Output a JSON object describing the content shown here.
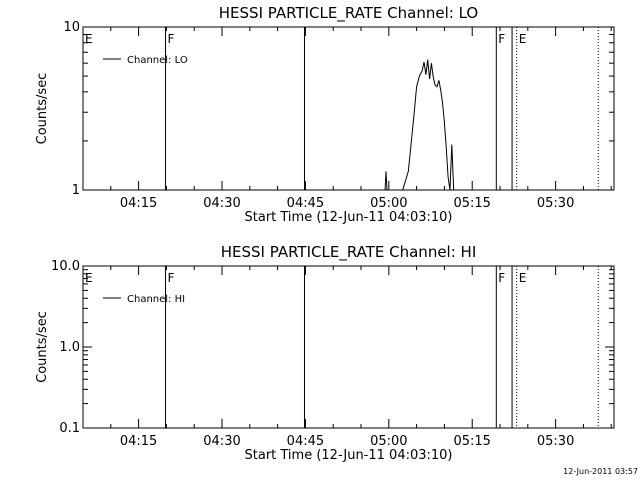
{
  "chart_data": [
    {
      "type": "line",
      "title": "HESSI PARTICLE_RATE Channel: LO",
      "xlabel": "Start Time (12-Jun-11 04:03:10)",
      "ylabel": "Counts/sec",
      "y_scale": "log",
      "ylim": [
        1,
        10
      ],
      "y_ticks": [
        "1",
        "10"
      ],
      "xlim": [
        "04:05:00",
        "05:40:30"
      ],
      "x_ticks": [
        "04:15",
        "04:30",
        "04:45",
        "05:00",
        "05:15",
        "05:30"
      ],
      "grid": false,
      "legend_position": "top-left",
      "series": [
        {
          "name": "Channel: LO",
          "x": [
            "04:58:40",
            "04:59:20",
            "04:59:30",
            "04:59:40",
            "05:00:00",
            "05:00:20",
            "05:02:30",
            "05:03:30",
            "05:04:30",
            "05:05:00",
            "05:05:30",
            "05:06:00",
            "05:06:20",
            "05:06:40",
            "05:07:00",
            "05:07:20",
            "05:07:40",
            "05:08:00",
            "05:08:20",
            "05:08:40",
            "05:09:00",
            "05:09:20",
            "05:09:40",
            "05:10:00",
            "05:10:20",
            "05:10:40",
            "05:11:00",
            "05:11:20",
            "05:11:40",
            "05:12:00"
          ],
          "y": [
            0,
            0,
            1.3,
            0,
            0,
            1.0,
            1.0,
            1.3,
            2.8,
            4.3,
            5.0,
            5.4,
            6.1,
            5.1,
            6.3,
            4.8,
            6.0,
            4.9,
            4.4,
            4.3,
            4.7,
            4.1,
            3.4,
            2.6,
            1.8,
            1.2,
            1.0,
            1.9,
            1.0,
            0
          ]
        }
      ],
      "markers": [
        {
          "label": "E",
          "time": "04:05:00",
          "style": "solid"
        },
        {
          "label": "F",
          "time": "04:19:50",
          "style": "solid"
        },
        {
          "label": "",
          "time": "04:44:50",
          "style": "solid"
        },
        {
          "label": "F",
          "time": "05:19:20",
          "style": "solid"
        },
        {
          "label": "",
          "time": "05:22:10",
          "style": "solid"
        },
        {
          "label": "E",
          "time": "05:23:00",
          "style": "dotted"
        },
        {
          "label": "",
          "time": "05:37:40",
          "style": "dotted"
        }
      ]
    },
    {
      "type": "line",
      "title": "HESSI PARTICLE_RATE Channel: HI",
      "xlabel": "Start Time (12-Jun-11 04:03:10)",
      "ylabel": "Counts/sec",
      "y_scale": "log",
      "ylim": [
        0.1,
        10
      ],
      "y_ticks": [
        "0.1",
        "1.0",
        "10.0"
      ],
      "xlim": [
        "04:05:00",
        "05:40:30"
      ],
      "x_ticks": [
        "04:15",
        "04:30",
        "04:45",
        "05:00",
        "05:15",
        "05:30"
      ],
      "grid": false,
      "legend_position": "top-left",
      "series": [
        {
          "name": "Channel: HI",
          "x": [],
          "y": []
        }
      ],
      "markers": [
        {
          "label": "E",
          "time": "04:05:00",
          "style": "solid"
        },
        {
          "label": "F",
          "time": "04:19:50",
          "style": "solid"
        },
        {
          "label": "",
          "time": "04:44:50",
          "style": "solid"
        },
        {
          "label": "F",
          "time": "05:19:20",
          "style": "solid"
        },
        {
          "label": "",
          "time": "05:22:10",
          "style": "solid"
        },
        {
          "label": "E",
          "time": "05:23:00",
          "style": "dotted"
        },
        {
          "label": "",
          "time": "05:37:40",
          "style": "dotted"
        }
      ]
    }
  ],
  "footer": {
    "timestamp": "12-Jun-2011 03:57"
  },
  "colors": {
    "background": "#ffffff",
    "foreground": "#000000"
  }
}
